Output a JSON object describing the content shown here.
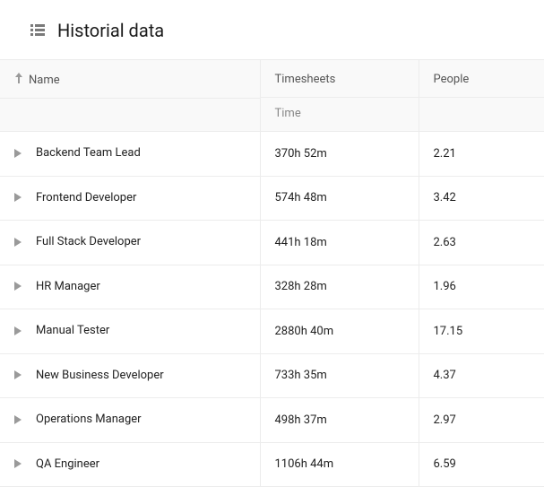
{
  "header": {
    "title": "Historial data"
  },
  "table": {
    "columns": {
      "name": {
        "label": "Name",
        "sort_dir": "asc"
      },
      "timesheets": {
        "label": "Timesheets",
        "sub_label": "Time"
      },
      "people": {
        "label": "People"
      }
    },
    "rows": [
      {
        "name": "Backend Team Lead",
        "time": "370h 52m",
        "people": "2.21"
      },
      {
        "name": "Frontend Developer",
        "time": "574h 48m",
        "people": "3.42"
      },
      {
        "name": "Full Stack Developer",
        "time": "441h 18m",
        "people": "2.63"
      },
      {
        "name": "HR Manager",
        "time": "328h 28m",
        "people": "1.96"
      },
      {
        "name": "Manual Tester",
        "time": "2880h 40m",
        "people": "17.15"
      },
      {
        "name": "New Business Developer",
        "time": "733h 35m",
        "people": "4.37"
      },
      {
        "name": "Operations Manager",
        "time": "498h 37m",
        "people": "2.97"
      },
      {
        "name": "QA Engineer",
        "time": "1106h 44m",
        "people": "6.59"
      }
    ]
  },
  "colors": {
    "border": "#ececec",
    "header_bg": "#f9f9f9",
    "text": "#1a1a1a",
    "muted": "#7a7a7a"
  }
}
